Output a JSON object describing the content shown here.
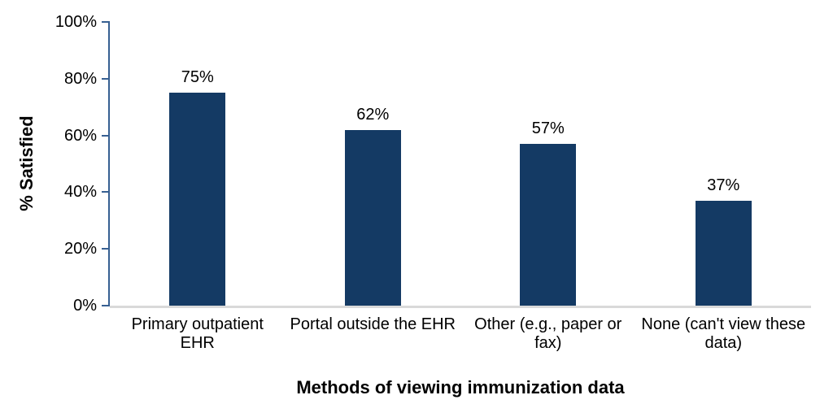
{
  "chart_data": {
    "type": "bar",
    "title": "",
    "xlabel": "Methods of viewing immunization data",
    "ylabel": "% Satisfied",
    "categories": [
      "Primary outpatient EHR",
      "Portal outside the EHR",
      "Other (e.g., paper or fax)",
      "None (can't view these data)"
    ],
    "category_label_lines": [
      [
        "Primary outpatient",
        "EHR"
      ],
      [
        "Portal outside the EHR"
      ],
      [
        "Other (e.g., paper or",
        "fax)"
      ],
      [
        "None (can't view these",
        "data)"
      ]
    ],
    "values": [
      75,
      62,
      57,
      37
    ],
    "value_labels": [
      "75%",
      "62%",
      "57%",
      "37%"
    ],
    "ylim": [
      0,
      100
    ],
    "y_tick_values": [
      0,
      20,
      40,
      60,
      80,
      100
    ],
    "y_tick_labels": [
      "0%",
      "20%",
      "40%",
      "60%",
      "80%",
      "100%"
    ],
    "grid": false,
    "legend": false,
    "colors": {
      "bar_fill": "#143A64",
      "y_axis_line": "#376092",
      "x_axis_line": "#D9D9D9",
      "text": "#000000",
      "background": "#FFFFFF"
    }
  }
}
